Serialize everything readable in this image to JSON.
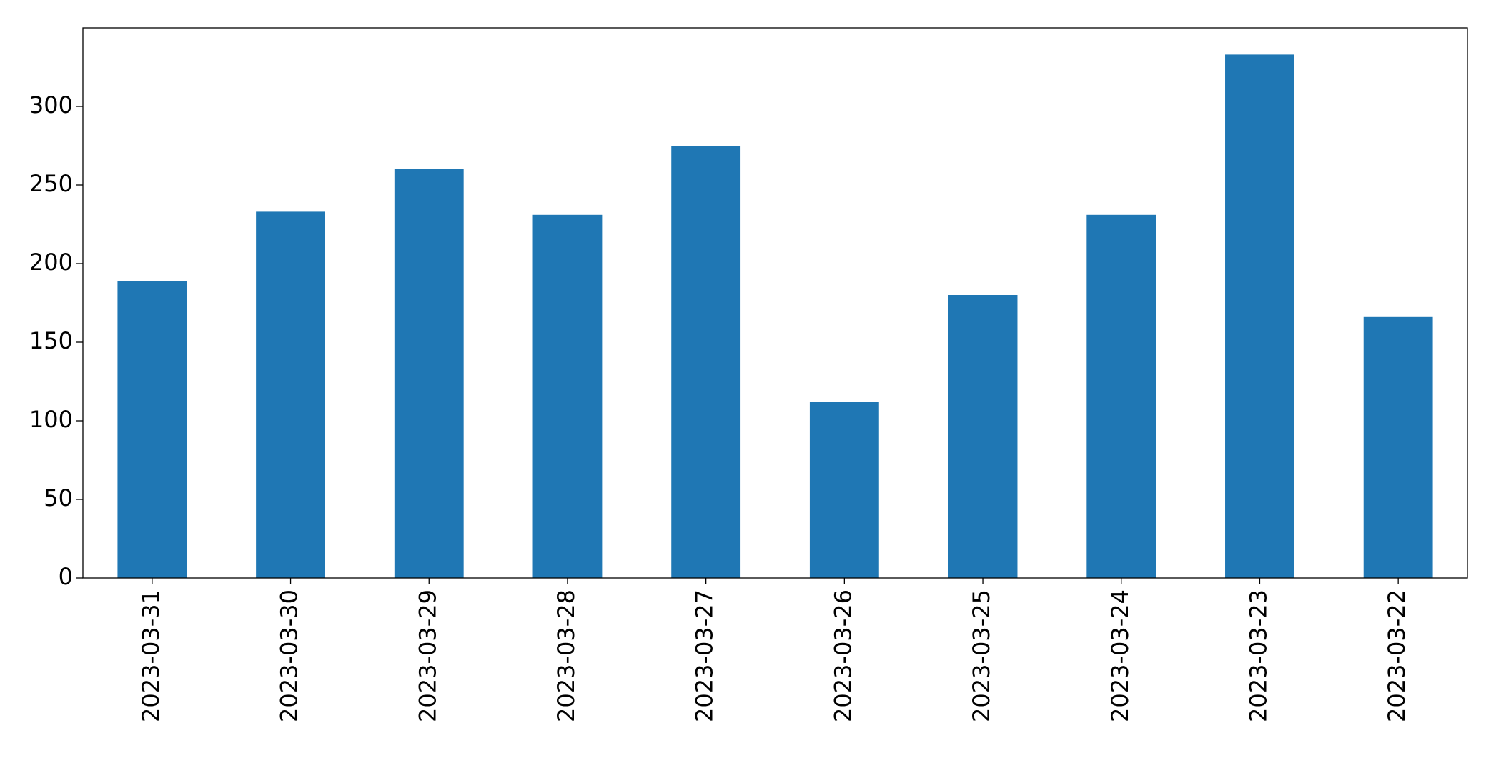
{
  "chart_data": {
    "type": "bar",
    "categories": [
      "2023-03-31",
      "2023-03-30",
      "2023-03-29",
      "2023-03-28",
      "2023-03-27",
      "2023-03-26",
      "2023-03-25",
      "2023-03-24",
      "2023-03-23",
      "2023-03-22"
    ],
    "values": [
      189,
      233,
      260,
      231,
      275,
      112,
      180,
      231,
      333,
      166
    ],
    "color": "#1f77b4",
    "ylim": [
      0,
      350
    ],
    "yticks": [
      0,
      50,
      100,
      150,
      200,
      250,
      300
    ],
    "grid": false
  }
}
